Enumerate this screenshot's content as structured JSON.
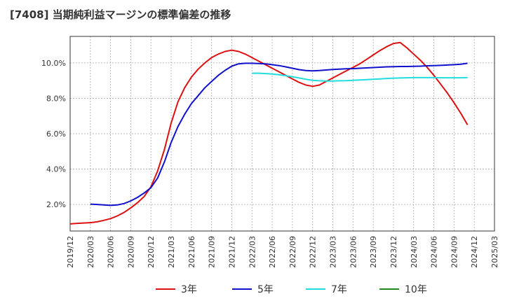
{
  "title": "[7408]  当期純利益マージンの標準偏差の推移",
  "chart_data": {
    "type": "line",
    "title": "[7408]  当期純利益マージンの標準偏差の推移",
    "ylim": [
      0.5,
      11.5
    ],
    "yticks": [
      2.0,
      4.0,
      6.0,
      8.0,
      10.0
    ],
    "ytick_labels": [
      "2.0%",
      "4.0%",
      "6.0%",
      "8.0%",
      "10.0%"
    ],
    "xlim": [
      "2019/12",
      "2025/03"
    ],
    "xtick_labels": [
      "2019/12",
      "2020/03",
      "2020/06",
      "2020/09",
      "2020/12",
      "2021/03",
      "2021/06",
      "2021/09",
      "2021/12",
      "2022/03",
      "2022/06",
      "2022/09",
      "2022/12",
      "2023/03",
      "2023/06",
      "2023/09",
      "2023/12",
      "2024/03",
      "2024/06",
      "2024/09",
      "2024/12",
      "2025/03"
    ],
    "grid": true,
    "legend": "bottom",
    "series": [
      {
        "name": "3年",
        "color": "#dd1111",
        "points": [
          [
            "2019/12",
            0.9
          ],
          [
            "2020/01",
            0.93
          ],
          [
            "2020/02",
            0.95
          ],
          [
            "2020/03",
            0.97
          ],
          [
            "2020/04",
            1.02
          ],
          [
            "2020/05",
            1.1
          ],
          [
            "2020/06",
            1.2
          ],
          [
            "2020/07",
            1.35
          ],
          [
            "2020/08",
            1.55
          ],
          [
            "2020/09",
            1.8
          ],
          [
            "2020/10",
            2.1
          ],
          [
            "2020/11",
            2.45
          ],
          [
            "2020/12",
            3.0
          ],
          [
            "2020/01",
            null
          ],
          [
            "2021/01",
            3.9
          ],
          [
            "2021/02",
            5.1
          ],
          [
            "2021/03",
            6.6
          ],
          [
            "2021/04",
            7.8
          ],
          [
            "2021/05",
            8.6
          ],
          [
            "2021/06",
            9.2
          ],
          [
            "2021/07",
            9.65
          ],
          [
            "2021/08",
            10.0
          ],
          [
            "2021/09",
            10.3
          ],
          [
            "2021/10",
            10.5
          ],
          [
            "2021/11",
            10.65
          ],
          [
            "2021/12",
            10.72
          ],
          [
            "2022/01",
            10.65
          ],
          [
            "2022/02",
            10.5
          ],
          [
            "2022/03",
            10.3
          ],
          [
            "2022/04",
            10.1
          ],
          [
            "2022/05",
            9.9
          ],
          [
            "2022/06",
            9.7
          ],
          [
            "2022/07",
            9.5
          ],
          [
            "2022/08",
            9.3
          ],
          [
            "2022/09",
            9.1
          ],
          [
            "2022/10",
            8.9
          ],
          [
            "2022/11",
            8.75
          ],
          [
            "2022/12",
            8.68
          ],
          [
            "2023/01",
            8.75
          ],
          [
            "2023/02",
            8.95
          ],
          [
            "2023/03",
            9.15
          ],
          [
            "2023/04",
            9.35
          ],
          [
            "2023/05",
            9.55
          ],
          [
            "2023/06",
            9.75
          ],
          [
            "2023/07",
            9.95
          ],
          [
            "2023/08",
            10.2
          ],
          [
            "2023/09",
            10.45
          ],
          [
            "2023/10",
            10.7
          ],
          [
            "2023/11",
            10.92
          ],
          [
            "2023/12",
            11.1
          ],
          [
            "2024/01",
            11.15
          ],
          [
            "2024/02",
            10.85
          ],
          [
            "2024/03",
            10.5
          ],
          [
            "2024/04",
            10.15
          ],
          [
            "2024/05",
            9.75
          ],
          [
            "2024/06",
            9.3
          ],
          [
            "2024/07",
            8.8
          ],
          [
            "2024/08",
            8.3
          ],
          [
            "2024/09",
            7.75
          ],
          [
            "2024/10",
            7.15
          ],
          [
            "2024/11",
            6.5
          ]
        ]
      },
      {
        "name": "5年",
        "color": "#1111cc",
        "points": [
          [
            "2020/03",
            2.02
          ],
          [
            "2020/04",
            2.0
          ],
          [
            "2020/05",
            1.97
          ],
          [
            "2020/06",
            1.95
          ],
          [
            "2020/07",
            1.97
          ],
          [
            "2020/08",
            2.05
          ],
          [
            "2020/09",
            2.2
          ],
          [
            "2020/10",
            2.4
          ],
          [
            "2020/11",
            2.65
          ],
          [
            "2020/12",
            2.95
          ],
          [
            "2021/01",
            3.5
          ],
          [
            "2021/02",
            4.4
          ],
          [
            "2021/03",
            5.5
          ],
          [
            "2021/04",
            6.4
          ],
          [
            "2021/05",
            7.1
          ],
          [
            "2021/06",
            7.7
          ],
          [
            "2021/07",
            8.15
          ],
          [
            "2021/08",
            8.6
          ],
          [
            "2021/09",
            8.95
          ],
          [
            "2021/10",
            9.3
          ],
          [
            "2021/11",
            9.58
          ],
          [
            "2021/12",
            9.82
          ],
          [
            "2022/01",
            9.95
          ],
          [
            "2022/02",
            9.98
          ],
          [
            "2022/03",
            9.98
          ],
          [
            "2022/04",
            9.97
          ],
          [
            "2022/05",
            9.95
          ],
          [
            "2022/06",
            9.9
          ],
          [
            "2022/07",
            9.85
          ],
          [
            "2022/08",
            9.78
          ],
          [
            "2022/09",
            9.7
          ],
          [
            "2022/10",
            9.62
          ],
          [
            "2022/11",
            9.57
          ],
          [
            "2022/12",
            9.55
          ],
          [
            "2023/01",
            9.57
          ],
          [
            "2023/02",
            9.6
          ],
          [
            "2023/03",
            9.63
          ],
          [
            "2023/04",
            9.65
          ],
          [
            "2023/05",
            9.67
          ],
          [
            "2023/06",
            9.68
          ],
          [
            "2023/07",
            9.7
          ],
          [
            "2023/08",
            9.72
          ],
          [
            "2023/09",
            9.74
          ],
          [
            "2023/10",
            9.76
          ],
          [
            "2023/11",
            9.78
          ],
          [
            "2023/12",
            9.79
          ],
          [
            "2024/01",
            9.8
          ],
          [
            "2024/02",
            9.8
          ],
          [
            "2024/03",
            9.81
          ],
          [
            "2024/04",
            9.82
          ],
          [
            "2024/05",
            9.84
          ],
          [
            "2024/06",
            9.85
          ],
          [
            "2024/07",
            9.86
          ],
          [
            "2024/08",
            9.88
          ],
          [
            "2024/09",
            9.9
          ],
          [
            "2024/10",
            9.93
          ],
          [
            "2024/11",
            9.98
          ]
        ]
      },
      {
        "name": "7年",
        "color": "#22dddd",
        "points": [
          [
            "2022/03",
            9.42
          ],
          [
            "2022/04",
            9.42
          ],
          [
            "2022/05",
            9.4
          ],
          [
            "2022/06",
            9.37
          ],
          [
            "2022/07",
            9.33
          ],
          [
            "2022/08",
            9.28
          ],
          [
            "2022/09",
            9.22
          ],
          [
            "2022/10",
            9.15
          ],
          [
            "2022/11",
            9.08
          ],
          [
            "2022/12",
            9.02
          ],
          [
            "2023/01",
            8.99
          ],
          [
            "2023/02",
            8.98
          ],
          [
            "2023/03",
            8.98
          ],
          [
            "2023/04",
            8.99
          ],
          [
            "2023/05",
            9.0
          ],
          [
            "2023/06",
            9.02
          ],
          [
            "2023/07",
            9.04
          ],
          [
            "2023/08",
            9.06
          ],
          [
            "2023/09",
            9.08
          ],
          [
            "2023/10",
            9.1
          ],
          [
            "2023/11",
            9.12
          ],
          [
            "2023/12",
            9.14
          ],
          [
            "2024/01",
            9.15
          ],
          [
            "2024/02",
            9.16
          ],
          [
            "2024/03",
            9.17
          ],
          [
            "2024/04",
            9.17
          ],
          [
            "2024/05",
            9.17
          ],
          [
            "2024/06",
            9.17
          ],
          [
            "2024/07",
            9.16
          ],
          [
            "2024/08",
            9.16
          ],
          [
            "2024/09",
            9.16
          ],
          [
            "2024/10",
            9.16
          ],
          [
            "2024/11",
            9.17
          ]
        ]
      },
      {
        "name": "10年",
        "color": "#228822",
        "points": []
      }
    ]
  }
}
